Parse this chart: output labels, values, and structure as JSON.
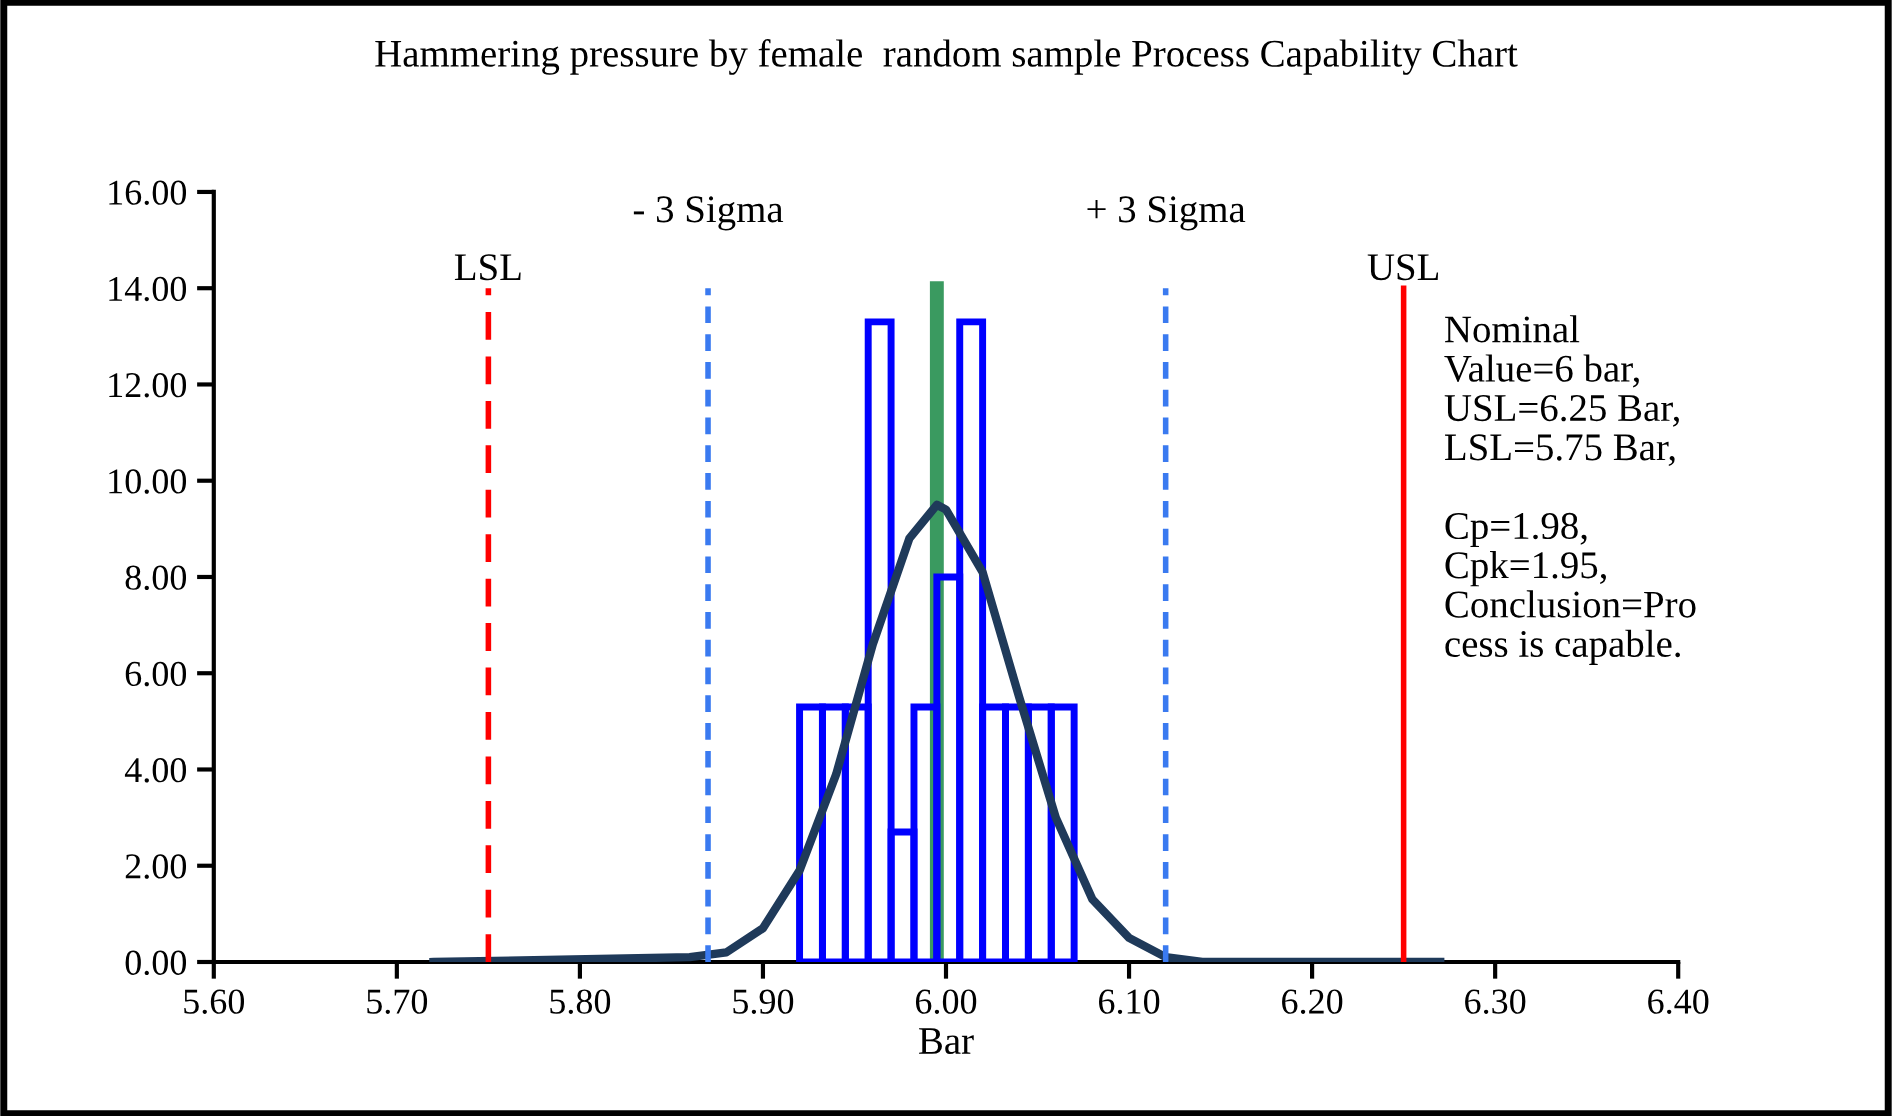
{
  "chart_data": {
    "type": "histogram",
    "title": "Hammering pressure by female  random sample Process Capability Chart",
    "xlabel": "Bar",
    "series": [
      {
        "color": "#0000ff",
        "bins": [
          5.92,
          5.9325,
          5.945,
          5.9575,
          5.97,
          5.9825,
          5.995,
          6.0075,
          6.02,
          6.0325,
          6.045,
          6.0575,
          6.07
        ],
        "values": [
          5.3,
          5.3,
          5.3,
          13.3,
          2.7,
          5.3,
          8.0,
          13.3,
          5.3,
          5.3,
          5.3,
          5.3
        ]
      },
      {
        "type": "line",
        "color": "#1f3a5a",
        "x": [
          5.72,
          5.86,
          5.88,
          5.9,
          5.92,
          5.94,
          5.96,
          5.98,
          5.995,
          6.0,
          6.02,
          6.04,
          6.06,
          6.08,
          6.1,
          6.12,
          6.14,
          6.27
        ],
        "values": [
          0,
          0.1,
          0.2,
          0.7,
          1.9,
          3.9,
          6.6,
          8.8,
          9.5,
          9.4,
          8.1,
          5.5,
          3.0,
          1.3,
          0.5,
          0.1,
          0.0,
          0
        ]
      }
    ],
    "ref_lines": [
      {
        "axis": "x",
        "value": 5.75,
        "label": "LSL",
        "color": "#ff0000",
        "line_style": "dashed"
      },
      {
        "axis": "x",
        "value": 6.25,
        "label": "USL",
        "color": "#ff0000",
        "line_style": "solid"
      },
      {
        "axis": "x",
        "value": 5.87,
        "label": "- 3 Sigma",
        "color": "#3a7af0",
        "line_style": "dotted"
      },
      {
        "axis": "x",
        "value": 6.12,
        "label": "+ 3 Sigma",
        "color": "#3a7af0",
        "line_style": "dotted"
      },
      {
        "axis": "x",
        "value": 5.995,
        "color": "#3a9a60",
        "line_style": "solid"
      }
    ],
    "annotations": [
      "Nominal\nValue=6 bar,\nUSL=6.25 Bar,\nLSL=5.75 Bar,\n\nCp=1.98,\nCpk=1.95,\nConclusion=Pro\ncess is capable."
    ],
    "xlim": [
      5.6,
      6.4
    ],
    "xticks": [
      {
        "value": 5.6,
        "label": "5.60"
      },
      {
        "value": 5.7,
        "label": "5.70"
      },
      {
        "value": 5.8,
        "label": "5.80"
      },
      {
        "value": 5.9,
        "label": "5.90"
      },
      {
        "value": 6.0,
        "label": "6.00"
      },
      {
        "value": 6.1,
        "label": "6.10"
      },
      {
        "value": 6.2,
        "label": "6.20"
      },
      {
        "value": 6.3,
        "label": "6.30"
      },
      {
        "value": 6.4,
        "label": "6.40"
      }
    ],
    "ylim": [
      0,
      16
    ],
    "yticks": [
      {
        "value": 0,
        "label": "0.00"
      },
      {
        "value": 2,
        "label": "2.00"
      },
      {
        "value": 4,
        "label": "4.00"
      },
      {
        "value": 6,
        "label": "6.00"
      },
      {
        "value": 8,
        "label": "8.00"
      },
      {
        "value": 10,
        "label": "10.00"
      },
      {
        "value": 12,
        "label": "12.00"
      },
      {
        "value": 14,
        "label": "14.00"
      },
      {
        "value": 16,
        "label": "16.00"
      }
    ],
    "grid": false,
    "legend": false
  }
}
